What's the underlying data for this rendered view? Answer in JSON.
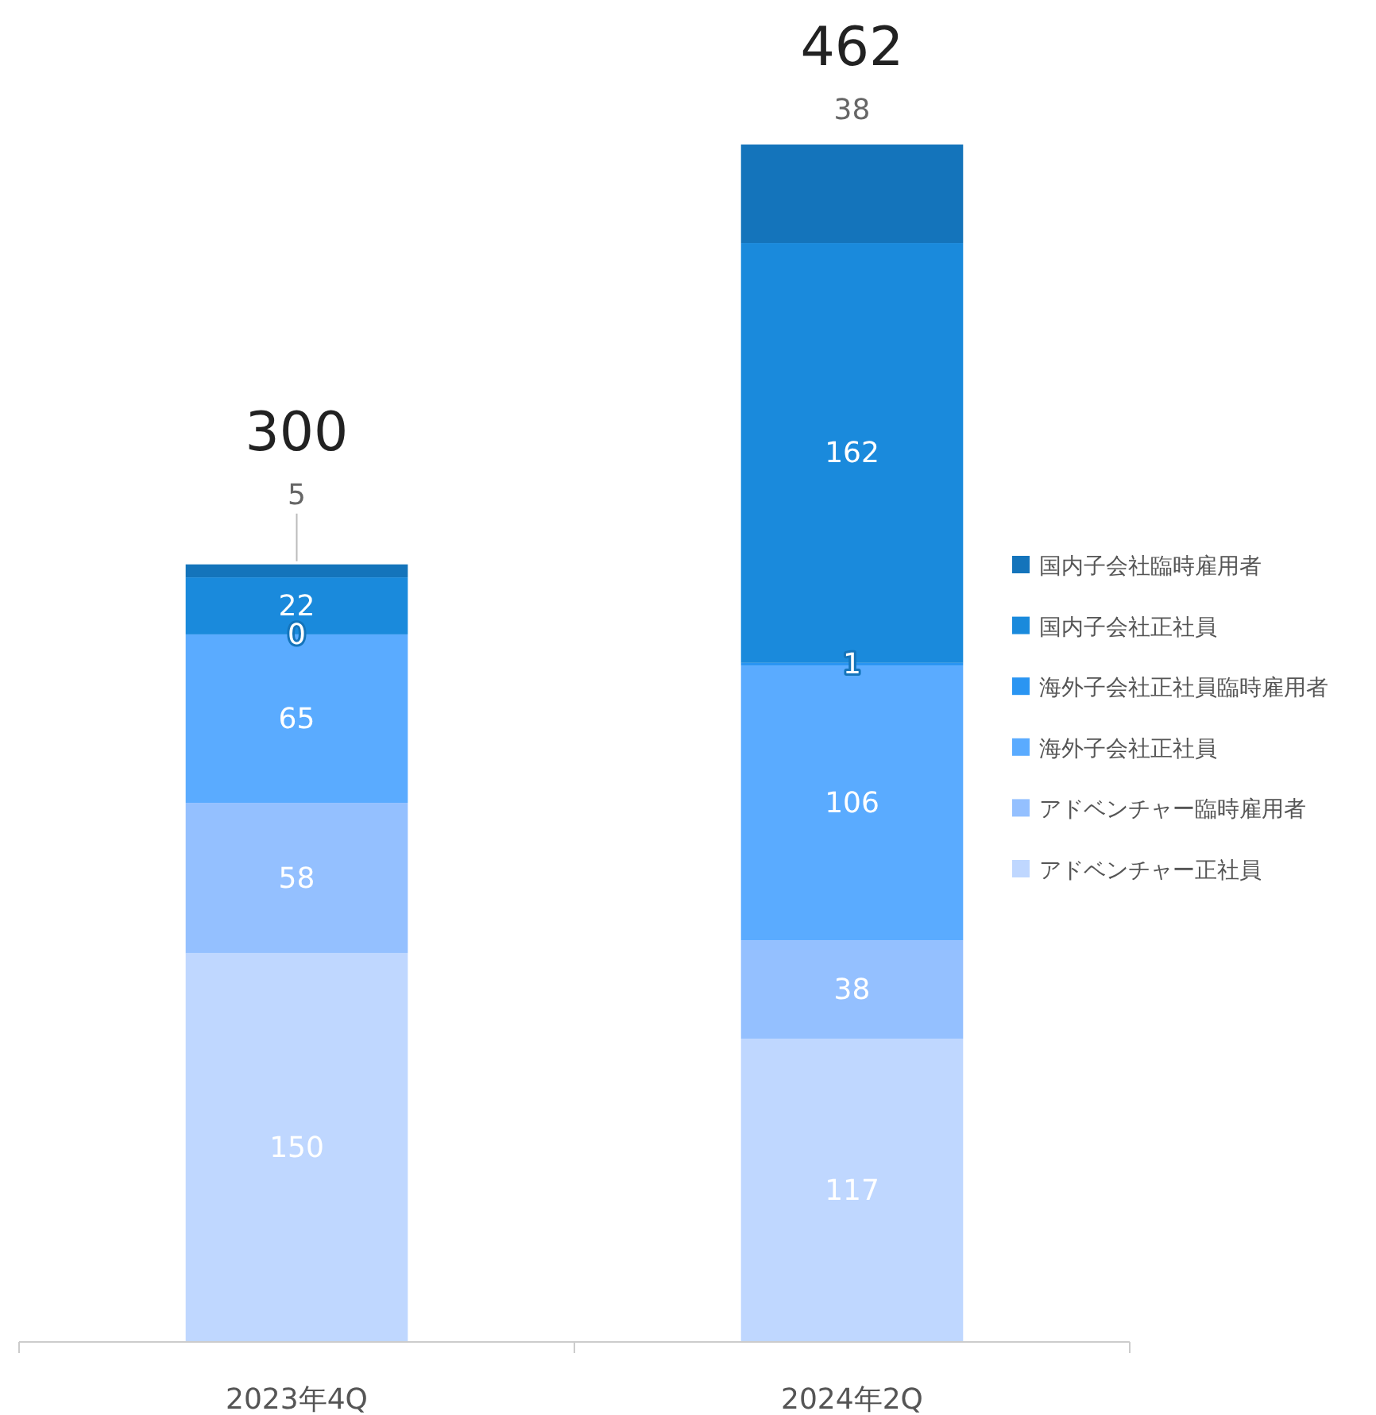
{
  "chart_data": {
    "type": "bar",
    "stacked": true,
    "data_labels": true,
    "legend": "right",
    "categories": [
      "2023年4Q",
      "2024年2Q"
    ],
    "series": [
      {
        "name": "アドベンチャー正社員",
        "color": "#bfd7ff",
        "values": [
          150,
          117
        ]
      },
      {
        "name": "アドベンチャー臨時雇用者",
        "color": "#94c0ff",
        "values": [
          58,
          38
        ]
      },
      {
        "name": "海外子会社正社員",
        "color": "#5aabff",
        "values": [
          65,
          106
        ]
      },
      {
        "name": "海外子会社正社員臨時雇用者",
        "color": "#2a95f2",
        "values": [
          0,
          1
        ]
      },
      {
        "name": "国内子会社正社員",
        "color": "#1a8adc",
        "values": [
          22,
          162
        ]
      },
      {
        "name": "国内子会社臨時雇用者",
        "color": "#1474bb",
        "values": [
          5,
          38
        ]
      }
    ],
    "totals": [
      "300",
      "462"
    ]
  }
}
